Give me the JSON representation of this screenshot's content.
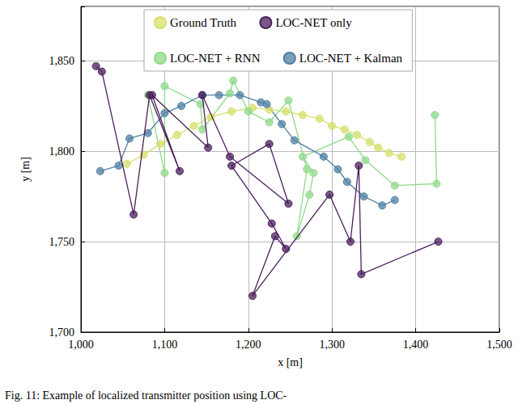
{
  "chart_data": {
    "type": "line",
    "caption": "Fig. 11: Example of localized transmitter position using LOC-",
    "x_label": "x [m]",
    "y_label": "y [m]",
    "xlim": [
      1000,
      1500
    ],
    "ylim": [
      1700,
      1880
    ],
    "xticks": [
      {
        "value": 1000,
        "label": "1,000"
      },
      {
        "value": 1100,
        "label": "1,100"
      },
      {
        "value": 1200,
        "label": "1,200"
      },
      {
        "value": 1300,
        "label": "1,300"
      },
      {
        "value": 1400,
        "label": "1,400"
      },
      {
        "value": 1500,
        "label": "1,500"
      }
    ],
    "yticks": [
      {
        "value": 1700,
        "label": "1,700"
      },
      {
        "value": 1750,
        "label": "1,750"
      },
      {
        "value": 1800,
        "label": "1,800"
      },
      {
        "value": 1850,
        "label": "1,850"
      }
    ],
    "grid": true,
    "legend": "top",
    "marker": "circle",
    "series": [
      {
        "name": "Ground Truth",
        "color": "#d6e06b",
        "x": [
          1055,
          1075,
          1095,
          1115,
          1135,
          1155,
          1180,
          1205,
          1225,
          1245,
          1265,
          1285,
          1300,
          1315,
          1330,
          1345,
          1355,
          1368,
          1383
        ],
        "values": [
          1793,
          1798,
          1804,
          1809,
          1814,
          1819,
          1822,
          1824,
          1823,
          1822,
          1820,
          1818,
          1814,
          1812,
          1809,
          1805,
          1802,
          1799,
          1797
        ]
      },
      {
        "name": "LOC-NET only",
        "color": "#4b1f5c",
        "x": [
          1018,
          1025,
          1063,
          1082,
          1118,
          1085,
          1152,
          1145,
          1178,
          1248,
          1225,
          1180,
          1228,
          1245,
          1232,
          1205,
          1297,
          1322,
          1332,
          1335,
          1427
        ],
        "values": [
          1847,
          1844,
          1765,
          1831,
          1789,
          1831,
          1802,
          1831,
          1797,
          1771,
          1804,
          1792,
          1760,
          1746,
          1753,
          1720,
          1776,
          1750,
          1792,
          1732,
          1750
        ]
      },
      {
        "name": "LOC-NET + RNN",
        "color": "#8fd98a",
        "x": [
          1080,
          1100,
          1100,
          1143,
          1145,
          1178,
          1182,
          1200,
          1225,
          1248,
          1270,
          1258,
          1273,
          1278,
          1265,
          1320,
          1340,
          1375,
          1425,
          1423
        ],
        "values": [
          1831,
          1788,
          1836,
          1826,
          1812,
          1832,
          1839,
          1822,
          1816,
          1828,
          1790,
          1753,
          1776,
          1788,
          1797,
          1808,
          1795,
          1781,
          1782,
          1820
        ]
      },
      {
        "name": "LOC-NET + Kalman",
        "color": "#4f7fa3",
        "x": [
          1023,
          1045,
          1058,
          1080,
          1100,
          1120,
          1145,
          1165,
          1190,
          1215,
          1222,
          1240,
          1255,
          1290,
          1307,
          1318,
          1338,
          1360,
          1375
        ],
        "values": [
          1789,
          1792,
          1807,
          1810,
          1821,
          1825,
          1831,
          1831,
          1831,
          1827,
          1826,
          1815,
          1806,
          1797,
          1790,
          1783,
          1775,
          1770,
          1773
        ]
      }
    ]
  }
}
